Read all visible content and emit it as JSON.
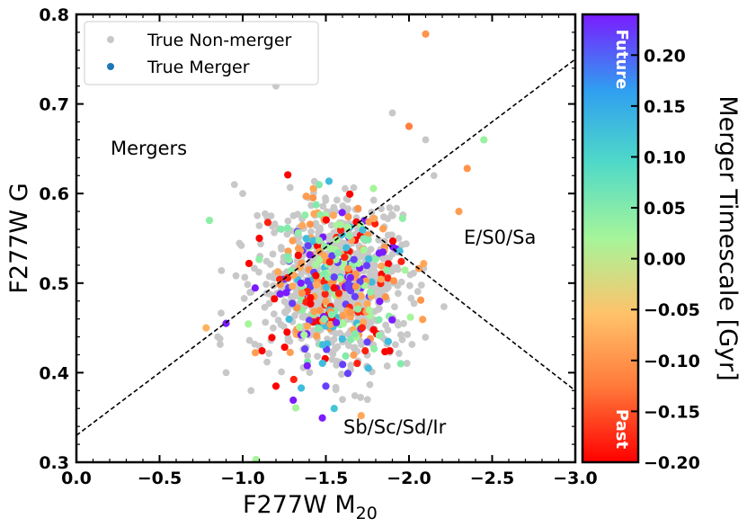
{
  "chart_data": {
    "type": "scatter",
    "title": "",
    "xlabel": "F277W M",
    "xlabel_sub": "20",
    "ylabel": "F277W G",
    "xlim": [
      0.0,
      -3.0
    ],
    "ylim": [
      0.3,
      0.8
    ],
    "x_ticks": [
      0.0,
      -0.5,
      -1.0,
      -1.5,
      -2.0,
      -2.5,
      -3.0
    ],
    "x_tick_labels": [
      "0.0",
      "−0.5",
      "−1.0",
      "−1.5",
      "−2.0",
      "−2.5",
      "−3.0"
    ],
    "y_ticks": [
      0.3,
      0.4,
      0.5,
      0.6,
      0.7,
      0.8
    ],
    "y_tick_labels": [
      "0.3",
      "0.4",
      "0.5",
      "0.6",
      "0.7",
      "0.8"
    ],
    "grid": false,
    "legend": {
      "position": "top-left",
      "entries": [
        {
          "label": "True Non-merger",
          "color": "#c8c8c8"
        },
        {
          "label": "True Merger",
          "color": "#1f77b4"
        }
      ]
    },
    "annotations": [
      {
        "text": "Mergers",
        "x": -0.35,
        "y": 0.65
      },
      {
        "text": "E/S0/Sa",
        "x": -2.35,
        "y": 0.55
      },
      {
        "text": "Sb/Sc/Sd/Ir",
        "x": -1.6,
        "y": 0.34
      }
    ],
    "boundary_lines": [
      {
        "name": "merger-line",
        "style": "dashed",
        "x": [
          0.0,
          -3.0
        ],
        "y": [
          0.33,
          0.75
        ]
      },
      {
        "name": "early-late-line",
        "style": "dashed",
        "x": [
          -1.7,
          -3.0
        ],
        "y": [
          0.568,
          0.38
        ]
      }
    ],
    "colorbar": {
      "label": "Merger Timescale [Gyr]",
      "min": -0.2,
      "max": 0.24,
      "ticks": [
        0.2,
        0.15,
        0.1,
        0.05,
        0.0,
        -0.05,
        -0.1,
        -0.15,
        -0.2
      ],
      "tick_labels": [
        "0.20",
        "0.15",
        "0.10",
        "0.05",
        "0.00",
        "−0.05",
        "−0.10",
        "−0.15",
        "−0.20"
      ],
      "top_label": "Future",
      "bottom_label": "Past",
      "colormap": "rainbow"
    },
    "series": [
      {
        "name": "True Non-merger",
        "color": "#c8c8c8",
        "cluster": {
          "center_x": -1.55,
          "center_y": 0.5,
          "spread_x": 0.22,
          "spread_y": 0.045,
          "count": 700,
          "seed": 7
        },
        "outliers": [
          {
            "x": -1.2,
            "y": 0.72
          },
          {
            "x": -1.9,
            "y": 0.69
          },
          {
            "x": -2.1,
            "y": 0.66
          },
          {
            "x": -0.95,
            "y": 0.61
          },
          {
            "x": -1.0,
            "y": 0.6
          },
          {
            "x": -0.85,
            "y": 0.44
          },
          {
            "x": -0.9,
            "y": 0.4
          },
          {
            "x": -1.05,
            "y": 0.38
          },
          {
            "x": -1.6,
            "y": 0.37
          },
          {
            "x": -1.75,
            "y": 0.37
          },
          {
            "x": -2.15,
            "y": 0.62
          }
        ]
      },
      {
        "name": "True Merger",
        "color_by": "merger_timescale",
        "cluster": {
          "center_x": -1.55,
          "center_y": 0.5,
          "spread_x": 0.2,
          "spread_y": 0.045,
          "count": 360,
          "seed": 13
        },
        "outliers": [
          {
            "x": -2.1,
            "y": 0.778,
            "t": -0.1
          },
          {
            "x": -2.0,
            "y": 0.675,
            "t": -0.12
          },
          {
            "x": -2.35,
            "y": 0.628,
            "t": -0.1
          },
          {
            "x": -2.3,
            "y": 0.58,
            "t": -0.09
          },
          {
            "x": -0.8,
            "y": 0.57,
            "t": 0.04
          },
          {
            "x": -2.45,
            "y": 0.66,
            "t": 0.03
          },
          {
            "x": -0.78,
            "y": 0.45,
            "t": -0.07
          },
          {
            "x": -0.9,
            "y": 0.455,
            "t": 0.24
          },
          {
            "x": -1.55,
            "y": 0.36,
            "t": 0.12
          },
          {
            "x": -1.5,
            "y": 0.385,
            "t": 0.22
          },
          {
            "x": -1.08,
            "y": 0.303,
            "t": 0.02
          },
          {
            "x": -1.2,
            "y": 0.385,
            "t": -0.2
          },
          {
            "x": -1.1,
            "y": 0.55,
            "t": -0.2
          },
          {
            "x": -1.35,
            "y": 0.5,
            "t": 0.24
          },
          {
            "x": -1.95,
            "y": 0.41,
            "t": 0.05
          }
        ]
      }
    ]
  }
}
